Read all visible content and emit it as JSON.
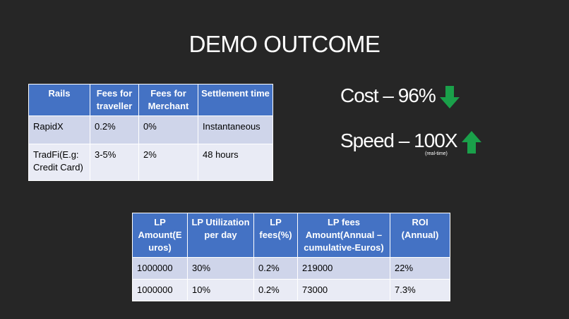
{
  "title": "DEMO OUTCOME",
  "rails_table": {
    "header": [
      "Rails",
      "Fees for traveller",
      "Fees for Merchant",
      "Settlement time"
    ],
    "rows": [
      [
        "RapidX",
        "0.2%",
        "0%",
        "Instantaneous"
      ],
      [
        "TradFi(E.g: Credit Card)",
        "3-5%",
        "2%",
        "48 hours"
      ]
    ]
  },
  "metrics": {
    "cost": "Cost – 96%",
    "speed": "Speed – 100X",
    "speed_note": "(real-time)"
  },
  "lp_table": {
    "header": [
      "LP Amount(Euros)",
      "LP Utilization per day",
      "LP fees(%)",
      "LP fees Amount(Annual – cumulative-Euros)",
      "ROI (Annual)"
    ],
    "rows": [
      [
        "1000000",
        "30%",
        "0.2%",
        "219000",
        "22%"
      ],
      [
        "1000000",
        "10%",
        "0.2%",
        "73000",
        "7.3%"
      ]
    ]
  }
}
